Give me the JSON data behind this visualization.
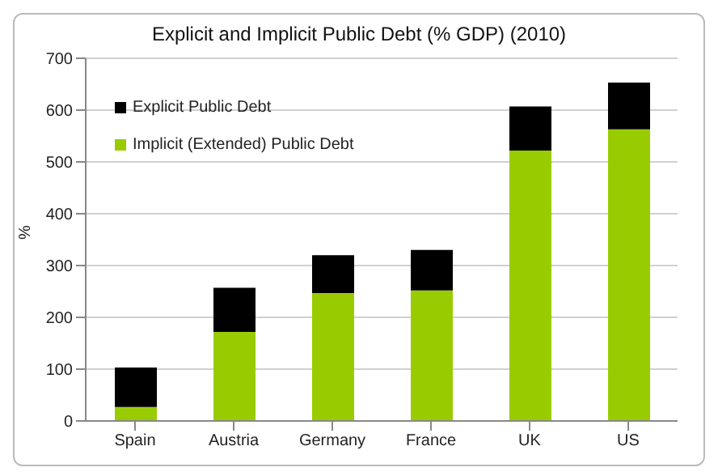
{
  "chart_data": {
    "type": "bar",
    "title": "Explicit and Implicit Public Debt (% GDP) (2010)",
    "ylabel": "%",
    "categories": [
      "Spain",
      "Austria",
      "Germany",
      "France",
      "UK",
      "US"
    ],
    "stacked": true,
    "series": [
      {
        "name": "Implicit (Extended) Public Debt",
        "color": "#99cc00",
        "values": [
          27,
          172,
          247,
          252,
          522,
          563
        ]
      },
      {
        "name": "Explicit Public Debt",
        "color": "#000000",
        "values": [
          76,
          85,
          73,
          78,
          85,
          90
        ]
      }
    ],
    "ylim": [
      0,
      700
    ],
    "yticks": [
      0,
      100,
      200,
      300,
      400,
      500,
      600,
      700
    ],
    "grid": "y",
    "legend": "top left"
  }
}
